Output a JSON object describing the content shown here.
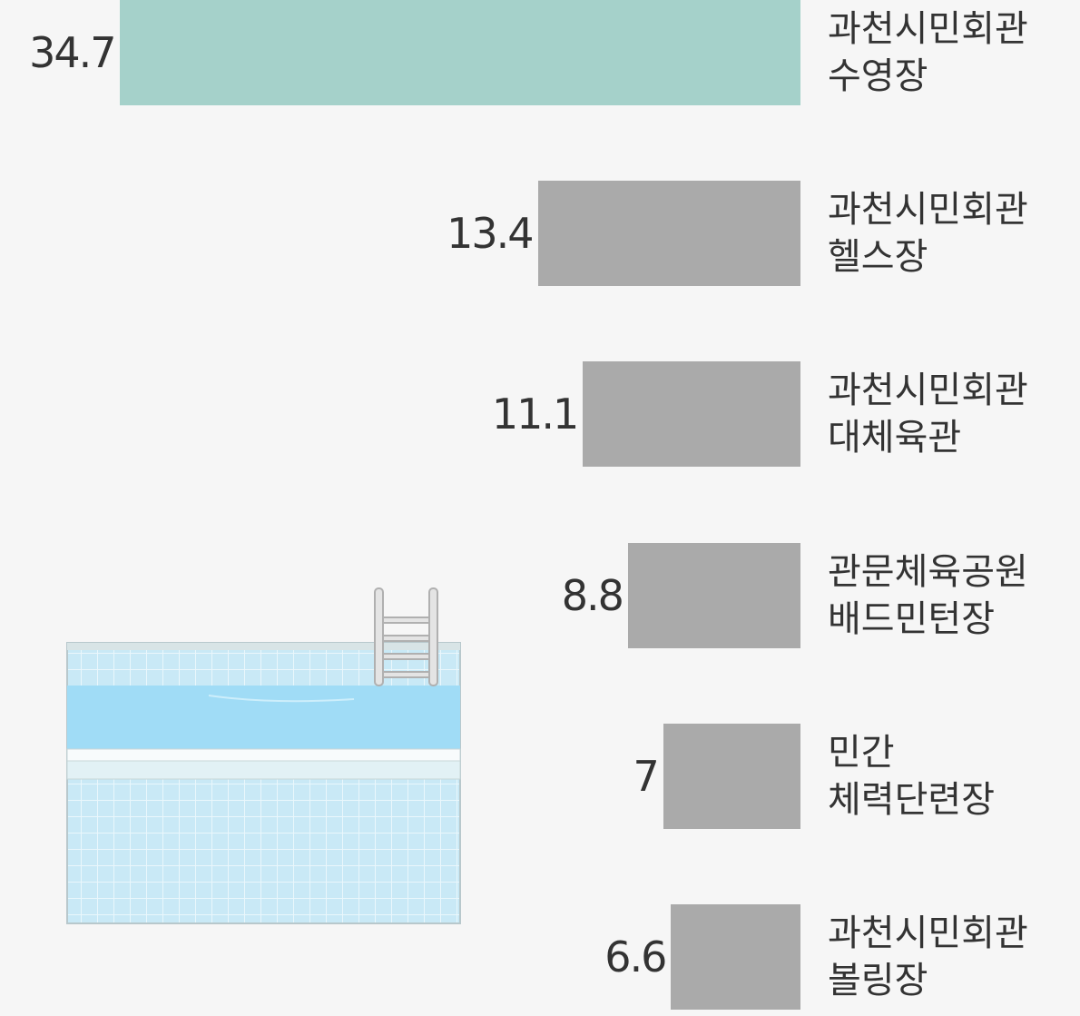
{
  "chart_data": {
    "type": "bar",
    "categories": [
      "과천시민회관\n수영장",
      "과천시민회관\n헬스장",
      "과천시민회관\n대체육관",
      "관문체육공원\n배드민턴장",
      "민간\n체력단련장",
      "과천시민회관\n볼링장"
    ],
    "values": [
      34.7,
      13.4,
      11.1,
      8.8,
      7,
      6.6
    ],
    "colors": [
      "#a5d1ca",
      "#aaaaaa",
      "#aaaaaa",
      "#aaaaaa",
      "#aaaaaa",
      "#aaaaaa"
    ]
  }
}
